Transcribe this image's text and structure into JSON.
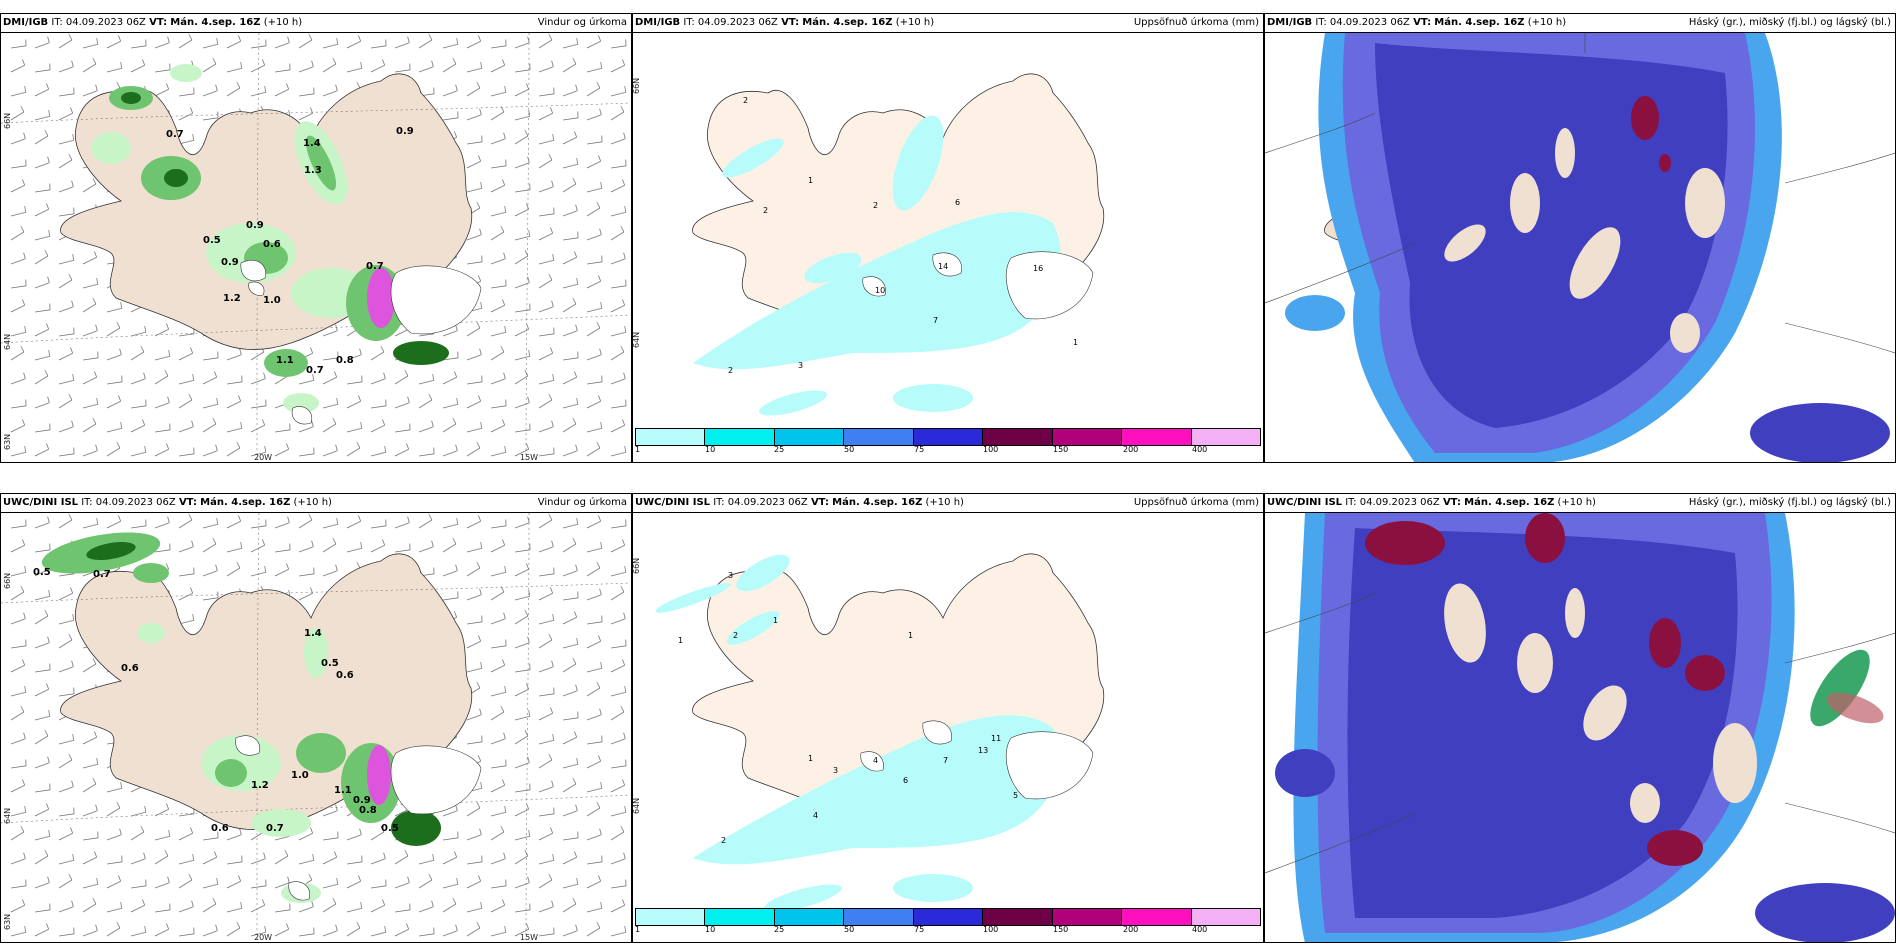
{
  "rows": [
    {
      "model": "DMI/IGB",
      "init_label": "IT:",
      "init": "04.09.2023 06Z",
      "valid_label": "VT:",
      "valid": "Mán. 4.sep. 16Z",
      "lead": "(+10 h)"
    },
    {
      "model": "UWC/DINI ISL",
      "init_label": "IT:",
      "init": "04.09.2023 06Z",
      "valid_label": "VT:",
      "valid": "Mán. 4.sep. 16Z",
      "lead": "(+10 h)"
    }
  ],
  "panels": {
    "wind": {
      "title": "Vindur og úrkoma"
    },
    "accum": {
      "title": "Uppsöfnuð úrkoma (mm)"
    },
    "cloud": {
      "title": "Háský (gr.), miðský (fj.bl.) og lágský (bl.)"
    }
  },
  "axes": {
    "lon_20": "20W",
    "lon_15": "15W",
    "lat_66": "66N",
    "lat_64": "64N",
    "lat_63": "63N"
  },
  "colorbar": {
    "ticks": [
      "1",
      "10",
      "25",
      "50",
      "75",
      "100",
      "150",
      "200",
      "400"
    ],
    "colors": [
      "#b8fbfb",
      "#00f0f0",
      "#00c4ec",
      "#3f7ff2",
      "#2a2ad8",
      "#6e0046",
      "#b0007a",
      "#ff10be",
      "#f4b0f4"
    ]
  },
  "colors": {
    "land": "#efe0d2",
    "precip_light": "#c8f5c8",
    "precip_mid": "#6fc46f",
    "precip_heavy": "#1c6e1c",
    "accum_light": "#b8fbfb",
    "cloud_low": "#3f3fc0",
    "cloud_mid": "#6a6ae0",
    "cloud_edge": "#49a6ee",
    "cloud_high": "#8a1040"
  },
  "values": {
    "wind_top": [
      "0.7",
      "0.5",
      "0.9",
      "0.6",
      "0.9",
      "0.7",
      "1.2",
      "1.1",
      "0.7",
      "0.8",
      "0.9",
      "1.4",
      "1.3",
      "1.0"
    ],
    "wind_bot": [
      "0.5",
      "0.7",
      "0.6",
      "1.4",
      "0.5",
      "0.6",
      "1.0",
      "0.9",
      "1.2",
      "0.7",
      "0.5",
      "0.6",
      "0.8",
      "1.1"
    ],
    "accum_top": [
      "2",
      "1",
      "2",
      "2",
      "6",
      "7",
      "10",
      "14",
      "16",
      "2",
      "3",
      "1"
    ],
    "accum_bot": [
      "3",
      "2",
      "1",
      "1",
      "4",
      "7",
      "6",
      "13",
      "11",
      "5",
      "3",
      "4",
      "2",
      "1",
      "1"
    ]
  }
}
